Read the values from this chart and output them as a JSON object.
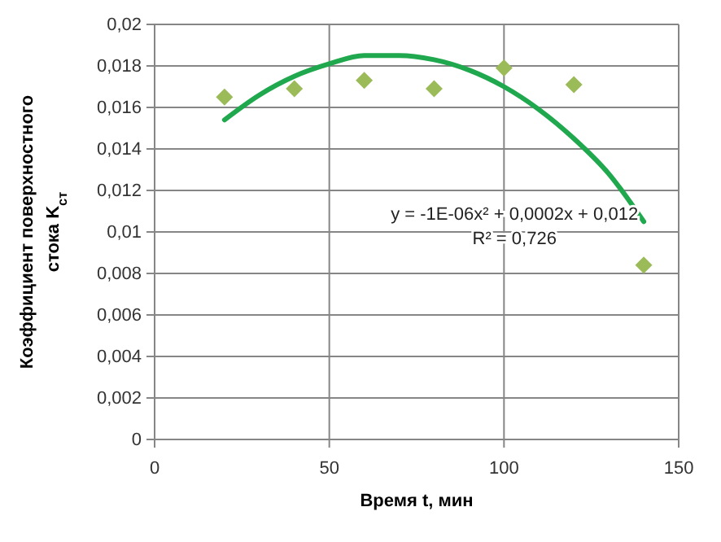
{
  "chart_data": {
    "type": "scatter",
    "xlabel": "Время   t, мин",
    "ylabel": "Коэффициент поверхностного стока K$_{ст}$",
    "xlim": [
      0,
      150
    ],
    "xticks": [
      0,
      50,
      100,
      150
    ],
    "ylim": [
      0,
      0.02
    ],
    "yticks": [
      0,
      {
        "value": 0.002,
        "label": "0,002"
      },
      {
        "value": 0.004,
        "label": "0,004"
      },
      {
        "value": 0.006,
        "label": "0,006"
      },
      {
        "value": 0.008,
        "label": "0,008"
      },
      {
        "value": 0.01,
        "label": "0,01"
      },
      {
        "value": 0.012,
        "label": "0,012"
      },
      {
        "value": 0.014,
        "label": "0,014"
      },
      {
        "value": 0.016,
        "label": "0,016"
      },
      {
        "value": 0.018,
        "label": "0,018"
      },
      {
        "value": 0.02,
        "label": "0,02"
      }
    ],
    "grid": true,
    "marker": "diamond",
    "series": [
      {
        "type": "scatter",
        "color": "#9bbb59",
        "x": [
          20,
          40,
          60,
          80,
          100,
          120,
          140
        ],
        "values": [
          0.0165,
          0.0169,
          0.0173,
          0.0169,
          0.0179,
          0.0171,
          0.0084
        ]
      },
      {
        "type": "line",
        "color": "#1fa84d",
        "marker": "none",
        "line_style": "solid",
        "x": [
          20,
          30,
          40,
          50,
          60,
          70,
          80,
          90,
          100,
          110,
          120,
          130,
          140
        ],
        "values": [
          0.0154,
          0.0166,
          0.0175,
          0.0181,
          0.0185,
          0.0185,
          0.0183,
          0.0178,
          0.017,
          0.0159,
          0.0145,
          0.0128,
          0.0105
        ]
      }
    ],
    "annotations": [
      "y = -1E-06x² + 0,0002x + 0,012",
      "R² = 0,726"
    ]
  }
}
